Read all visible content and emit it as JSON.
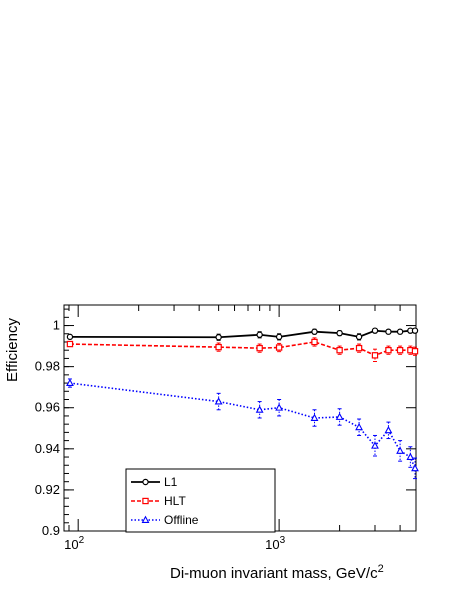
{
  "chart_data": {
    "type": "line",
    "xlabel": "Di-muon invariant mass,  GeV/c",
    "xlabel_superscript": "2",
    "ylabel": "Efficiency",
    "x_scale": "log",
    "xlim": [
      85,
      4800
    ],
    "ylim": [
      0.9,
      1.01
    ],
    "y_ticks": [
      {
        "value": 0.9,
        "label": "0.9"
      },
      {
        "value": 0.92,
        "label": "0.92"
      },
      {
        "value": 0.94,
        "label": "0.94"
      },
      {
        "value": 0.96,
        "label": "0.96"
      },
      {
        "value": 0.98,
        "label": "0.98"
      },
      {
        "value": 1.0,
        "label": "1"
      }
    ],
    "x_major_ticks": [
      {
        "value": 100,
        "base": "10",
        "exp": "2"
      },
      {
        "value": 1000,
        "base": "10",
        "exp": "3"
      }
    ],
    "legend_position": "bottom-left",
    "grid": false,
    "series": [
      {
        "name": "L1",
        "color": "#000000",
        "dash": "none",
        "marker": "circle",
        "points": [
          {
            "x": 91,
            "y": 0.9945,
            "err": 0.0008
          },
          {
            "x": 500,
            "y": 0.9943,
            "err": 0.0015
          },
          {
            "x": 800,
            "y": 0.9955,
            "err": 0.0015
          },
          {
            "x": 1000,
            "y": 0.9945,
            "err": 0.0015
          },
          {
            "x": 1500,
            "y": 0.997,
            "err": 0.0012
          },
          {
            "x": 2000,
            "y": 0.9963,
            "err": 0.0012
          },
          {
            "x": 2500,
            "y": 0.9945,
            "err": 0.0015
          },
          {
            "x": 3000,
            "y": 0.9975,
            "err": 0.001
          },
          {
            "x": 3500,
            "y": 0.997,
            "err": 0.001
          },
          {
            "x": 4000,
            "y": 0.997,
            "err": 0.001
          },
          {
            "x": 4500,
            "y": 0.9975,
            "err": 0.001
          },
          {
            "x": 5000,
            "y": 0.9975,
            "err": 0.001
          }
        ]
      },
      {
        "name": "HLT",
        "color": "#ff0000",
        "dash": "4,2",
        "marker": "square",
        "points": [
          {
            "x": 91,
            "y": 0.991,
            "err": 0.0008
          },
          {
            "x": 500,
            "y": 0.9895,
            "err": 0.002
          },
          {
            "x": 800,
            "y": 0.989,
            "err": 0.002
          },
          {
            "x": 1000,
            "y": 0.9893,
            "err": 0.002
          },
          {
            "x": 1500,
            "y": 0.992,
            "err": 0.002
          },
          {
            "x": 2000,
            "y": 0.988,
            "err": 0.002
          },
          {
            "x": 2500,
            "y": 0.989,
            "err": 0.002
          },
          {
            "x": 3000,
            "y": 0.9855,
            "err": 0.003
          },
          {
            "x": 3500,
            "y": 0.988,
            "err": 0.002
          },
          {
            "x": 4000,
            "y": 0.988,
            "err": 0.002
          },
          {
            "x": 4500,
            "y": 0.988,
            "err": 0.002
          },
          {
            "x": 5000,
            "y": 0.9875,
            "err": 0.002
          }
        ]
      },
      {
        "name": "Offline",
        "color": "#0000ff",
        "dash": "1.5,2",
        "marker": "triangle",
        "points": [
          {
            "x": 91,
            "y": 0.972,
            "err": 0.002
          },
          {
            "x": 500,
            "y": 0.963,
            "err": 0.004
          },
          {
            "x": 800,
            "y": 0.959,
            "err": 0.004
          },
          {
            "x": 1000,
            "y": 0.96,
            "err": 0.004
          },
          {
            "x": 1500,
            "y": 0.955,
            "err": 0.004
          },
          {
            "x": 2000,
            "y": 0.9555,
            "err": 0.004
          },
          {
            "x": 2500,
            "y": 0.9505,
            "err": 0.004
          },
          {
            "x": 3000,
            "y": 0.9415,
            "err": 0.005
          },
          {
            "x": 3500,
            "y": 0.949,
            "err": 0.004
          },
          {
            "x": 4000,
            "y": 0.939,
            "err": 0.005
          },
          {
            "x": 4500,
            "y": 0.936,
            "err": 0.005
          },
          {
            "x": 5000,
            "y": 0.9305,
            "err": 0.005
          }
        ]
      }
    ]
  }
}
